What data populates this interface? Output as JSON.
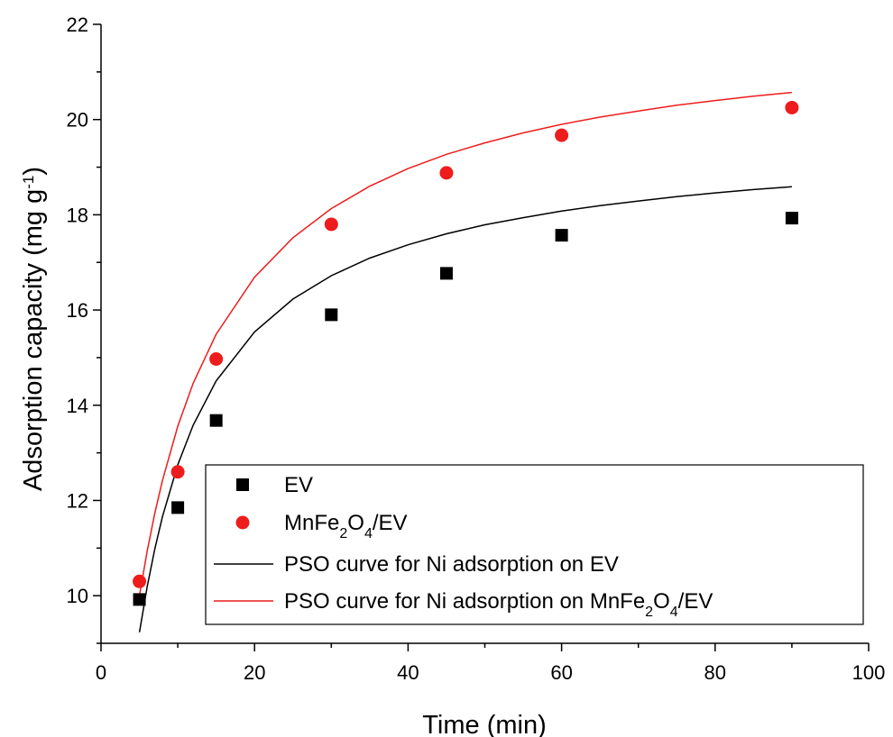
{
  "chart_data": {
    "type": "scatter",
    "title": "",
    "xlabel": "Time (min)",
    "ylabel": {
      "main": "Adsorption capacity (mg g",
      "sup": "-1",
      "close": ")"
    },
    "xlim": [
      0,
      100
    ],
    "ylim": [
      9,
      22
    ],
    "xticks": [
      0,
      20,
      40,
      60,
      80,
      100
    ],
    "yticks": [
      10,
      12,
      14,
      16,
      18,
      20,
      22
    ],
    "grid": false,
    "legend_position": "bottom-right",
    "series": [
      {
        "name": "EV",
        "kind": "points",
        "marker": "square",
        "color": "#000000",
        "x": [
          5,
          10,
          15,
          30,
          45,
          60,
          90
        ],
        "y": [
          9.92,
          11.85,
          13.68,
          15.9,
          16.77,
          17.57,
          17.93
        ]
      },
      {
        "name": "MnFe₂O₄/EV",
        "name_parts": [
          {
            "t": "MnFe"
          },
          {
            "t": "2",
            "sub": true
          },
          {
            "t": "O"
          },
          {
            "t": "4",
            "sub": true
          },
          {
            "t": "/EV"
          }
        ],
        "kind": "points",
        "marker": "circle",
        "color": "#ee1c1c",
        "x": [
          5,
          10,
          15,
          30,
          45,
          60,
          90
        ],
        "y": [
          10.3,
          12.6,
          14.97,
          17.8,
          18.88,
          19.67,
          20.25
        ]
      },
      {
        "name": "PSO curve for Ni adsorption on EV",
        "name_parts": [
          {
            "t": "PSO curve for Ni adsorption on EV"
          }
        ],
        "kind": "line",
        "color": "#000000",
        "model": {
          "qe": 19.04,
          "k2": 0.0118
        },
        "x": [
          5,
          6,
          7,
          8,
          10,
          12,
          15,
          20,
          25,
          30,
          35,
          40,
          45,
          50,
          55,
          60,
          65,
          70,
          75,
          80,
          85,
          90
        ],
        "y": [
          9.23,
          10.18,
          10.98,
          11.66,
          12.75,
          13.58,
          14.51,
          15.54,
          16.23,
          16.72,
          17.09,
          17.37,
          17.6,
          17.79,
          17.94,
          18.08,
          18.19,
          18.29,
          18.38,
          18.46,
          18.53,
          18.59
        ]
      },
      {
        "name": "PSO curve for Ni adsorption on MnFe₂O₄/EV",
        "name_parts": [
          {
            "t": "PSO curve for Ni adsorption on MnFe"
          },
          {
            "t": "2",
            "sub": true
          },
          {
            "t": "O"
          },
          {
            "t": "4",
            "sub": true
          },
          {
            "t": "/EV"
          }
        ],
        "kind": "line",
        "color": "#ee1c1c",
        "model": {
          "qe": 21.72,
          "k2": 0.0083
        },
        "x": [
          5,
          6,
          7,
          8,
          10,
          12,
          15,
          20,
          25,
          30,
          35,
          40,
          45,
          50,
          55,
          60,
          65,
          70,
          75,
          80,
          85,
          90
        ],
        "y": [
          10.0,
          10.93,
          11.73,
          12.42,
          13.56,
          14.46,
          15.49,
          16.69,
          17.52,
          18.13,
          18.6,
          18.97,
          19.27,
          19.51,
          19.72,
          19.9,
          20.05,
          20.18,
          20.3,
          20.4,
          20.49,
          20.57
        ]
      }
    ]
  }
}
